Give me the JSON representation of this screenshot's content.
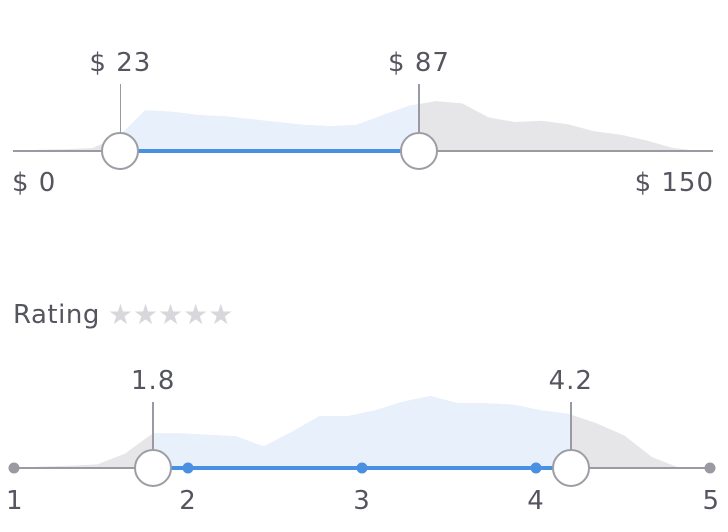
{
  "price_filter": {
    "min_label": "$ 0",
    "max_label": "$ 150",
    "low_value_label": "$ 23",
    "high_value_label": "$ 87",
    "range_min": 0,
    "range_max": 150,
    "low_value": 23,
    "high_value": 87,
    "histogram": [
      0,
      0.02,
      0.03,
      0.05,
      0.25,
      0.7,
      0.68,
      0.62,
      0.6,
      0.55,
      0.5,
      0.45,
      0.43,
      0.45,
      0.62,
      0.78,
      0.86,
      0.82,
      0.58,
      0.5,
      0.52,
      0.46,
      0.34,
      0.28,
      0.18,
      0.05,
      0
    ]
  },
  "rating_filter": {
    "title": "Rating",
    "stars": [
      "star-empty",
      "star-empty",
      "star-empty",
      "star-empty",
      "star-empty"
    ],
    "tick_labels": [
      "1",
      "2",
      "3",
      "4",
      "5"
    ],
    "low_value_label": "1.8",
    "high_value_label": "4.2",
    "range_min": 1,
    "range_max": 5,
    "low_value": 1.8,
    "high_value": 4.2,
    "histogram": [
      0,
      0.02,
      0.03,
      0.05,
      0.2,
      0.48,
      0.48,
      0.46,
      0.44,
      0.3,
      0.5,
      0.72,
      0.72,
      0.8,
      0.92,
      1.0,
      0.9,
      0.9,
      0.88,
      0.8,
      0.75,
      0.62,
      0.45,
      0.15,
      0
    ]
  },
  "colors": {
    "track": "#9a9aa2",
    "active": "#4a90e2",
    "hist_active": "#e8f0fc",
    "hist_inactive": "#e6e6e8",
    "star": "#d8d8dc"
  }
}
